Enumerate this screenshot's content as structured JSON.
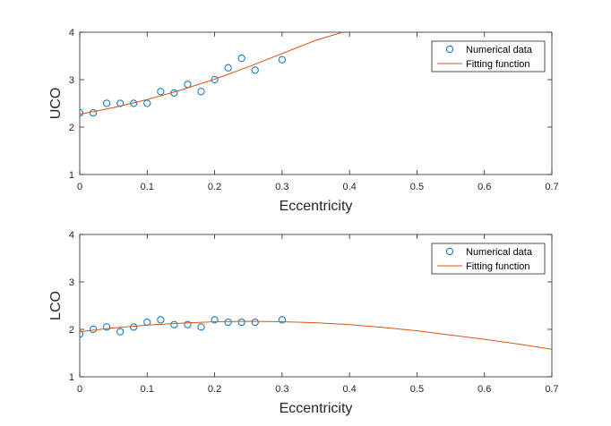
{
  "chart_data": [
    {
      "type": "scatter",
      "xlabel": "Eccentricity",
      "ylabel": "UCO",
      "xlim": [
        0,
        0.7
      ],
      "ylim": [
        1,
        4
      ],
      "xticks": [
        "0",
        "0.1",
        "0.2",
        "0.3",
        "0.4",
        "0.5",
        "0.6",
        "0.7"
      ],
      "yticks": [
        "1",
        "2",
        "3",
        "4"
      ],
      "legend_position": "top-right",
      "series": [
        {
          "name": "Numerical data",
          "style": "markers",
          "color": "#0072BD",
          "x": [
            0,
            0.02,
            0.04,
            0.06,
            0.08,
            0.1,
            0.12,
            0.14,
            0.16,
            0.18,
            0.2,
            0.22,
            0.24,
            0.26,
            0.3
          ],
          "y": [
            2.3,
            2.3,
            2.5,
            2.5,
            2.5,
            2.5,
            2.75,
            2.72,
            2.9,
            2.75,
            3.0,
            3.25,
            3.45,
            3.2,
            3.42
          ]
        },
        {
          "name": "Fitting function",
          "style": "line",
          "color": "#D95319",
          "x": [
            0,
            0.05,
            0.1,
            0.15,
            0.2,
            0.25,
            0.3,
            0.35,
            0.39
          ],
          "y": [
            2.27,
            2.41,
            2.58,
            2.78,
            3.01,
            3.27,
            3.55,
            3.83,
            4.0
          ]
        }
      ]
    },
    {
      "type": "scatter",
      "xlabel": "Eccentricity",
      "ylabel": "LCO",
      "xlim": [
        0,
        0.7
      ],
      "ylim": [
        1,
        4
      ],
      "xticks": [
        "0",
        "0.1",
        "0.2",
        "0.3",
        "0.4",
        "0.5",
        "0.6",
        "0.7"
      ],
      "yticks": [
        "1",
        "2",
        "3",
        "4"
      ],
      "legend_position": "top-right",
      "series": [
        {
          "name": "Numerical data",
          "style": "markers",
          "color": "#0072BD",
          "x": [
            0,
            0.02,
            0.04,
            0.06,
            0.08,
            0.1,
            0.12,
            0.14,
            0.16,
            0.18,
            0.2,
            0.22,
            0.24,
            0.26,
            0.3
          ],
          "y": [
            1.9,
            2.0,
            2.05,
            1.95,
            2.05,
            2.15,
            2.2,
            2.1,
            2.1,
            2.05,
            2.2,
            2.15,
            2.15,
            2.15,
            2.2
          ]
        },
        {
          "name": "Fitting function",
          "style": "line",
          "color": "#D95319",
          "x": [
            0,
            0.05,
            0.1,
            0.15,
            0.2,
            0.25,
            0.3,
            0.35,
            0.4,
            0.45,
            0.5,
            0.55,
            0.6,
            0.65,
            0.7
          ],
          "y": [
            1.95,
            2.03,
            2.09,
            2.13,
            2.16,
            2.17,
            2.16,
            2.14,
            2.1,
            2.04,
            1.97,
            1.88,
            1.79,
            1.69,
            1.58
          ]
        }
      ]
    }
  ]
}
